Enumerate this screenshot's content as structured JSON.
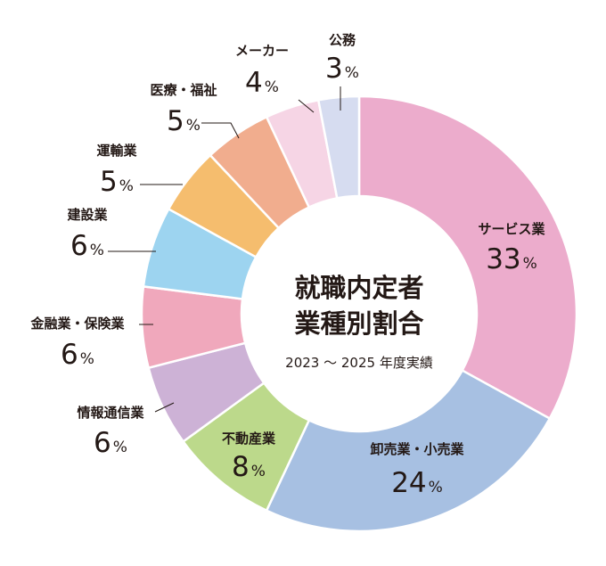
{
  "chart_data": {
    "type": "pie",
    "title_lines": [
      "就職内定者",
      "業種別割合"
    ],
    "subtitle": "2023 ～ 2025 年度実績",
    "unit": "%",
    "slices": [
      {
        "label": "サービス業",
        "value": 33,
        "color": "#ecaccc"
      },
      {
        "label": "卸売業・小売業",
        "value": 24,
        "color": "#a7c0e2"
      },
      {
        "label": "不動産業",
        "value": 8,
        "color": "#bcd98b"
      },
      {
        "label": "情報通信業",
        "value": 6,
        "color": "#cdb2d6"
      },
      {
        "label": "金融業・保険業",
        "value": 6,
        "color": "#f0a8bc"
      },
      {
        "label": "建設業",
        "value": 6,
        "color": "#9dd4f0"
      },
      {
        "label": "運輸業",
        "value": 5,
        "color": "#f5bd6e"
      },
      {
        "label": "医療・福祉",
        "value": 5,
        "color": "#f1ad8e"
      },
      {
        "label": "メーカー",
        "value": 4,
        "color": "#f6d5e5"
      },
      {
        "label": "公務",
        "value": 3,
        "color": "#d6dcf0"
      }
    ]
  }
}
